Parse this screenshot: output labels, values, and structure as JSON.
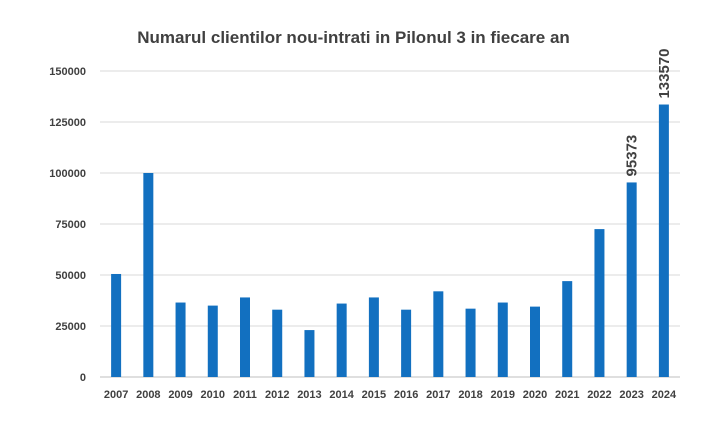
{
  "chart_data": {
    "type": "bar",
    "title": "Numarul clientilor nou-intrati in Pilonul 3 in fiecare an",
    "xlabel": "",
    "ylabel": "",
    "categories": [
      "2007",
      "2008",
      "2009",
      "2010",
      "2011",
      "2012",
      "2013",
      "2014",
      "2015",
      "2016",
      "2017",
      "2018",
      "2019",
      "2020",
      "2021",
      "2022",
      "2023",
      "2024"
    ],
    "values": [
      50500,
      100000,
      36500,
      35000,
      39000,
      33000,
      23000,
      36000,
      39000,
      33000,
      42000,
      33500,
      36500,
      34500,
      47000,
      72500,
      95373,
      133570
    ],
    "data_labels": {
      "2023": "95373",
      "2024": "133570"
    },
    "ylim": [
      0,
      150000
    ],
    "yticks": [
      0,
      25000,
      50000,
      75000,
      100000,
      125000,
      150000
    ],
    "grid": true,
    "legend": "none",
    "bar_color": "#1270c0",
    "grid_color": "#d9d9d9",
    "text_color": "#404040"
  }
}
